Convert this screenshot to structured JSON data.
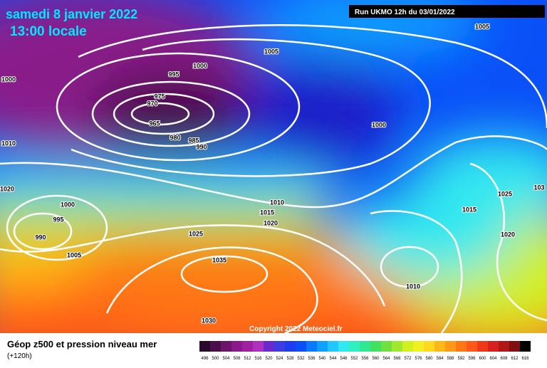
{
  "header": {
    "date": "samedi 8 janvier 2022",
    "time": "13:00 locale",
    "run": "Run UKMO 12h du 03/01/2022"
  },
  "isobar_labels": [
    "1005",
    "1005",
    "1000",
    "995",
    "1000",
    "975",
    "970",
    "965",
    "980",
    "985",
    "990",
    "1000",
    "1010",
    "1020",
    "1025",
    "103",
    "1000",
    "1010",
    "1015",
    "995",
    "1015",
    "1020",
    "990",
    "1025",
    "1020",
    "1005",
    "1035",
    "1010",
    "1030"
  ],
  "copyright": "Copyright 2022 Meteociel.fr",
  "footer": {
    "title": "Géop z500 et pression niveau mer",
    "lead": "(+120h)"
  },
  "scale": {
    "values": [
      496,
      500,
      504,
      508,
      512,
      516,
      520,
      524,
      528,
      532,
      536,
      540,
      544,
      548,
      552,
      556,
      560,
      564,
      568,
      572,
      576,
      580,
      584,
      588,
      592,
      596,
      600,
      604,
      608,
      612,
      616
    ],
    "colors": [
      "#2a0a2a",
      "#4a0f4a",
      "#6a146a",
      "#8a1a8a",
      "#a020a0",
      "#b030c0",
      "#6a2ad0",
      "#3c3ce0",
      "#1e3cf0",
      "#0a50f8",
      "#0a78ff",
      "#10a0ff",
      "#20c8ff",
      "#30e8f0",
      "#30f0c0",
      "#30e890",
      "#40e060",
      "#70e040",
      "#a0e830",
      "#d0f020",
      "#f0f020",
      "#ffd820",
      "#ffb818",
      "#ff9818",
      "#ff7818",
      "#ff5818",
      "#f03818",
      "#d82020",
      "#b01818",
      "#801010",
      "#000000"
    ]
  }
}
